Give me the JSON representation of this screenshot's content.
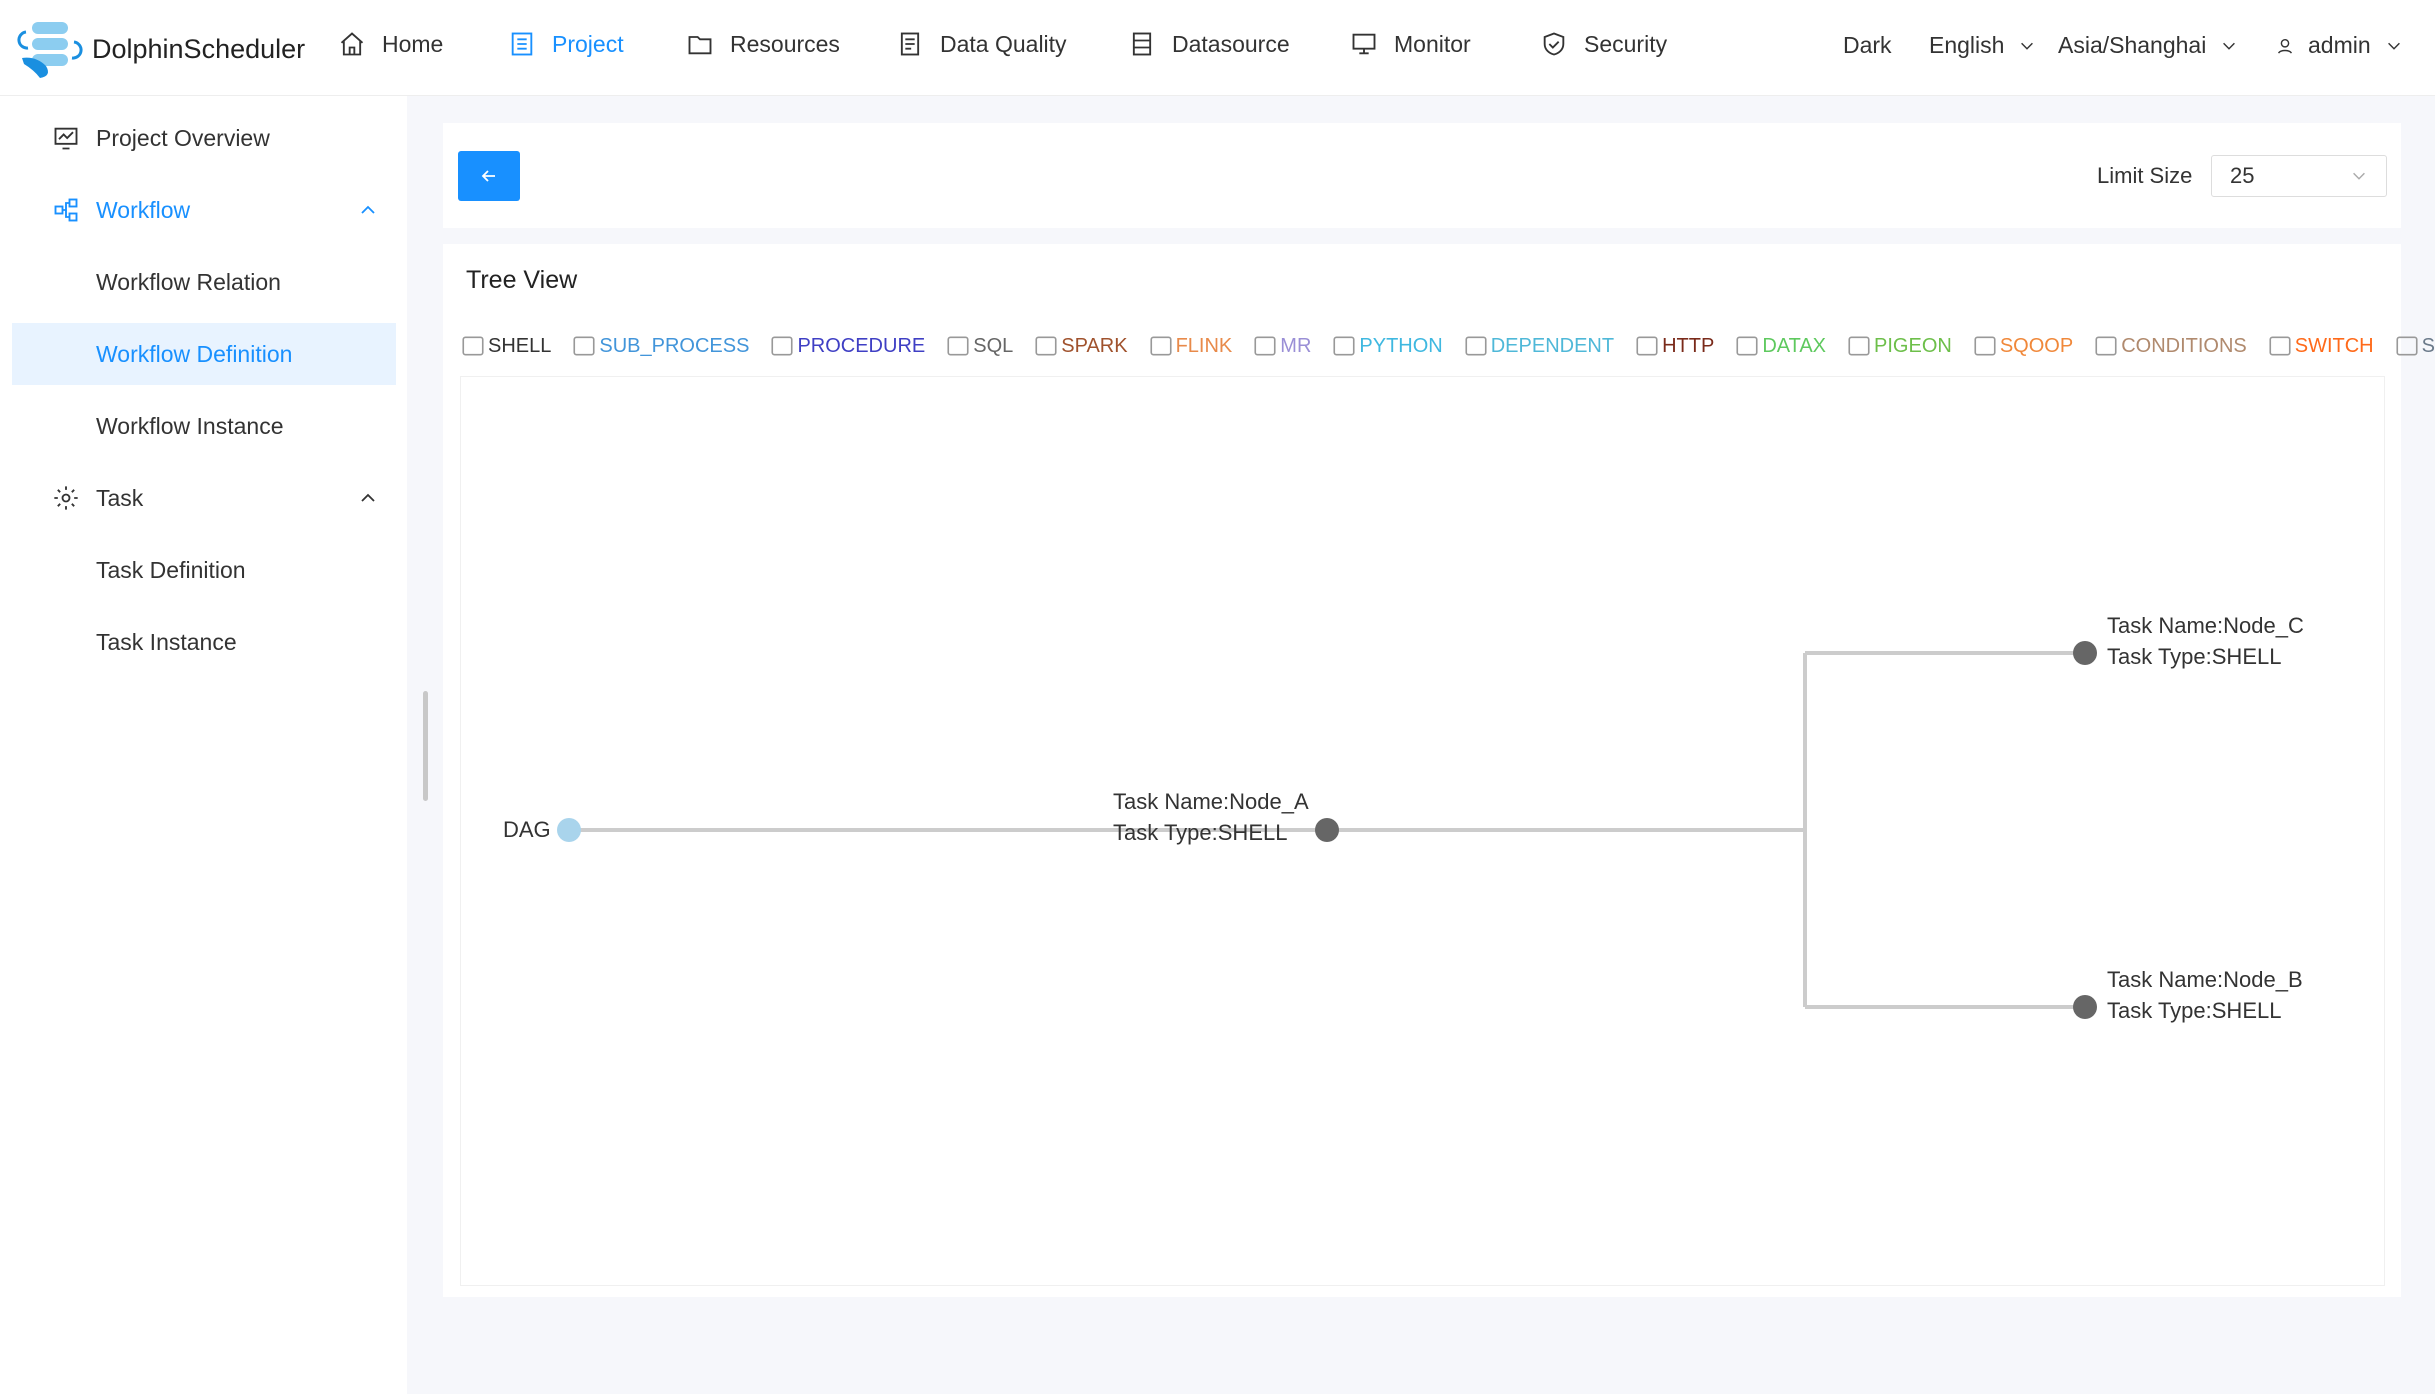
{
  "app": {
    "name": "DolphinScheduler"
  },
  "nav": [
    {
      "label": "Home",
      "icon": "home-icon"
    },
    {
      "label": "Project",
      "icon": "project-icon",
      "active": true
    },
    {
      "label": "Resources",
      "icon": "folder-icon"
    },
    {
      "label": "Data Quality",
      "icon": "data-quality-icon"
    },
    {
      "label": "Datasource",
      "icon": "datasource-icon"
    },
    {
      "label": "Monitor",
      "icon": "monitor-icon"
    },
    {
      "label": "Security",
      "icon": "shield-icon"
    }
  ],
  "header_right": {
    "theme": "Dark",
    "language": "English",
    "timezone": "Asia/Shanghai",
    "user": "admin"
  },
  "sidebar": {
    "items": [
      {
        "label": "Project Overview"
      },
      {
        "label": "Workflow"
      },
      {
        "label": "Workflow Relation"
      },
      {
        "label": "Workflow Definition",
        "selected": true
      },
      {
        "label": "Workflow Instance"
      },
      {
        "label": "Task"
      },
      {
        "label": "Task Definition"
      },
      {
        "label": "Task Instance"
      }
    ]
  },
  "toolbar": {
    "limit_label": "Limit Size",
    "limit_value": "25"
  },
  "tree": {
    "title": "Tree View",
    "legend": [
      {
        "label": "SHELL",
        "color": "#333333"
      },
      {
        "label": "SUB_PROCESS",
        "color": "#4295da"
      },
      {
        "label": "PROCEDURE",
        "color": "#3f3fc4"
      },
      {
        "label": "SQL",
        "color": "#666666"
      },
      {
        "label": "SPARK",
        "color": "#a0522d"
      },
      {
        "label": "FLINK",
        "color": "#e88a4a"
      },
      {
        "label": "MR",
        "color": "#9a8fd6"
      },
      {
        "label": "PYTHON",
        "color": "#3fb8e0"
      },
      {
        "label": "DEPENDENT",
        "color": "#4fb8d8"
      },
      {
        "label": "HTTP",
        "color": "#7a2a1a"
      },
      {
        "label": "DATAX",
        "color": "#5ec95e"
      },
      {
        "label": "PIGEON",
        "color": "#6dbf4a"
      },
      {
        "label": "SQOOP",
        "color": "#f0883a"
      },
      {
        "label": "CONDITIONS",
        "color": "#b08a6e"
      },
      {
        "label": "SWITCH",
        "color": "#ff6a1a"
      },
      {
        "label": "SEATUNNEL",
        "color": "#6b7a8a"
      }
    ],
    "root": "DAG",
    "nodes": [
      {
        "name": "Task Name:Node_A",
        "type": "Task Type:SHELL"
      },
      {
        "name": "Task Name:Node_C",
        "type": "Task Type:SHELL"
      },
      {
        "name": "Task Name:Node_B",
        "type": "Task Type:SHELL"
      }
    ]
  }
}
